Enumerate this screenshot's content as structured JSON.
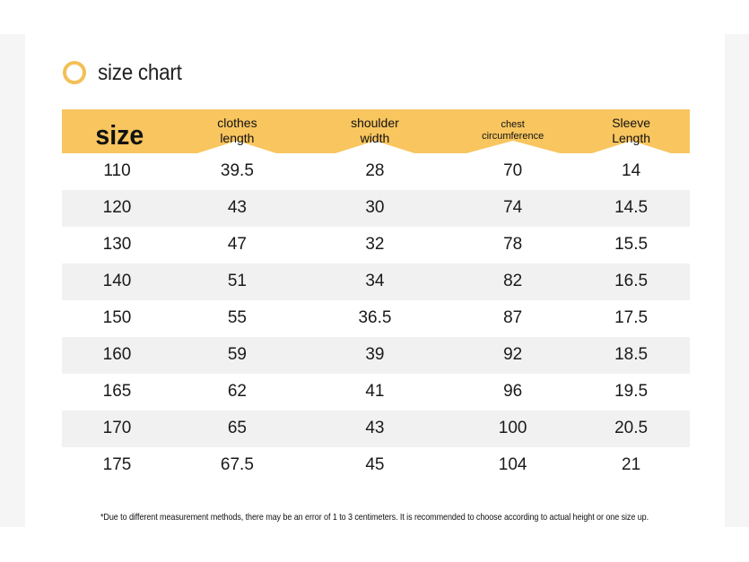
{
  "title": "size chart",
  "headers": {
    "size": "size",
    "clothes_length": [
      "clothes",
      "length"
    ],
    "shoulder_width": [
      "shoulder",
      "width"
    ],
    "chest": [
      "chest",
      "circumference"
    ],
    "sleeve": [
      "Sleeve",
      "Length"
    ]
  },
  "rows": [
    [
      "110",
      "39.5",
      "28",
      "70",
      "14"
    ],
    [
      "120",
      "43",
      "30",
      "74",
      "14.5"
    ],
    [
      "130",
      "47",
      "32",
      "78",
      "15.5"
    ],
    [
      "140",
      "51",
      "34",
      "82",
      "16.5"
    ],
    [
      "150",
      "55",
      "36.5",
      "87",
      "17.5"
    ],
    [
      "160",
      "59",
      "39",
      "92",
      "18.5"
    ],
    [
      "165",
      "62",
      "41",
      "96",
      "19.5"
    ],
    [
      "170",
      "65",
      "43",
      "100",
      "20.5"
    ],
    [
      "175",
      "67.5",
      "45",
      "104",
      "21"
    ]
  ],
  "note": "*Due to different measurement methods, there may be an error of 1 to 3 centimeters. It is recommended to choose according to actual height or one size up.",
  "colors": {
    "header": "#f8c55f",
    "ring": "#f3c057",
    "stripe": "#f1f1f1"
  }
}
